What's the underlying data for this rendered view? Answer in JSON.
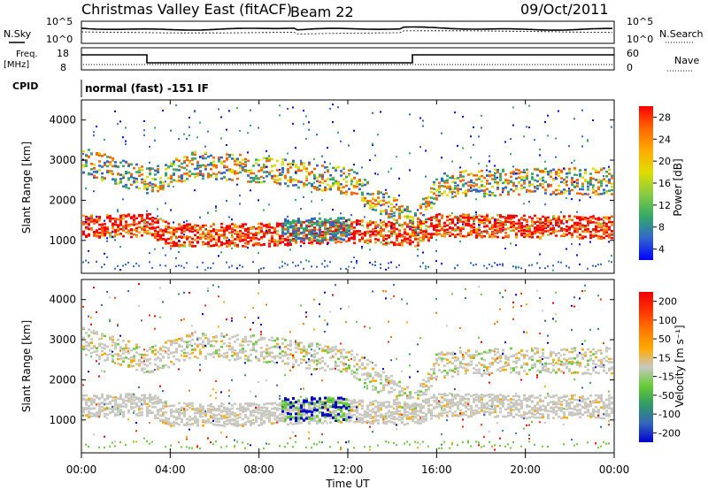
{
  "header": {
    "site": "Christmas Valley East (fitACF)",
    "beam": "Beam 22",
    "date": "09/Oct/2011"
  },
  "noise_panel": {
    "left_label": "N.Sky",
    "right_label": "N.Search",
    "left_ticks": [
      "10^5",
      "10^0"
    ],
    "right_ticks": [
      "10^5",
      "10^0"
    ]
  },
  "freq_panel": {
    "left_label_1": "Freq.",
    "left_label_2": "[MHz]",
    "right_label": "Nave",
    "left_ticks": [
      "18",
      "8"
    ],
    "right_ticks": [
      "60",
      "0"
    ]
  },
  "cpid": {
    "label": "CPID",
    "value": "normal (fast) -151 IF"
  },
  "power_panel": {
    "ylabel": "Slant Range [km]",
    "yticks": [
      "4000",
      "3000",
      "2000",
      "1000"
    ],
    "cbar_label": "Power [dB]",
    "cbar_ticks": [
      "28",
      "24",
      "20",
      "16",
      "12",
      "8",
      "4"
    ],
    "colors": [
      "#0000ff",
      "#3366cc",
      "#33aa66",
      "#88cc44",
      "#dddd00",
      "#ffaa00",
      "#ff6600",
      "#ff0000"
    ]
  },
  "velocity_panel": {
    "ylabel": "Slant Range [km]",
    "yticks": [
      "4000",
      "3000",
      "2000",
      "1000"
    ],
    "cbar_label": "Velocity [m s⁻¹]",
    "cbar_ticks": [
      "200",
      "100",
      "50",
      "15",
      "-15",
      "-50",
      "-100",
      "-200"
    ],
    "colors": [
      "#0000cc",
      "#3366bb",
      "#339966",
      "#66cc33",
      "#c8c8c0",
      "#ffaa00",
      "#ff7700",
      "#ff3300",
      "#ee0000"
    ]
  },
  "xaxis": {
    "ticks": [
      "00:00",
      "04:00",
      "08:00",
      "12:00",
      "16:00",
      "20:00",
      "00:00"
    ],
    "label": "Time UT"
  },
  "chart_data": [
    {
      "type": "heatmap",
      "title": "Power",
      "xlabel": "Time UT",
      "ylabel": "Slant Range [km]",
      "xlim": [
        0,
        24
      ],
      "ylim": [
        180,
        4500
      ],
      "colorbar": {
        "label": "Power [dB]",
        "range": [
          0,
          30
        ]
      },
      "features": [
        {
          "name": "ground scatter band",
          "x": [
            0,
            3,
            4,
            8,
            12,
            15,
            16,
            20,
            24
          ],
          "y": [
            1300,
            1350,
            1100,
            1100,
            1200,
            1100,
            1350,
            1300,
            1300
          ]
        },
        {
          "name": "upper scatter band",
          "x": [
            0,
            3,
            5,
            8,
            12,
            15,
            16,
            20,
            24
          ],
          "y": [
            3000,
            2500,
            2900,
            2800,
            2500,
            1400,
            2400,
            2500,
            2500
          ]
        },
        {
          "name": "patch",
          "x": [
            9,
            10,
            11,
            12
          ],
          "y": [
            1300,
            1300,
            1300,
            1300
          ]
        }
      ]
    },
    {
      "type": "heatmap",
      "title": "Velocity",
      "xlabel": "Time UT",
      "ylabel": "Slant Range [km]",
      "xlim": [
        0,
        24
      ],
      "ylim": [
        180,
        4500
      ],
      "colorbar": {
        "label": "Velocity [m s⁻¹]",
        "range": [
          -200,
          200
        ]
      },
      "features": [
        {
          "name": "ground scatter band",
          "x": [
            0,
            3,
            4,
            8,
            12,
            15,
            16,
            20,
            24
          ],
          "y": [
            1300,
            1350,
            1100,
            1100,
            1200,
            1100,
            1350,
            1300,
            1300
          ]
        },
        {
          "name": "upper scatter band",
          "x": [
            0,
            3,
            5,
            8,
            12,
            15,
            16,
            20,
            24
          ],
          "y": [
            3000,
            2500,
            2900,
            2800,
            2500,
            1400,
            2400,
            2500,
            2500
          ]
        }
      ]
    }
  ]
}
